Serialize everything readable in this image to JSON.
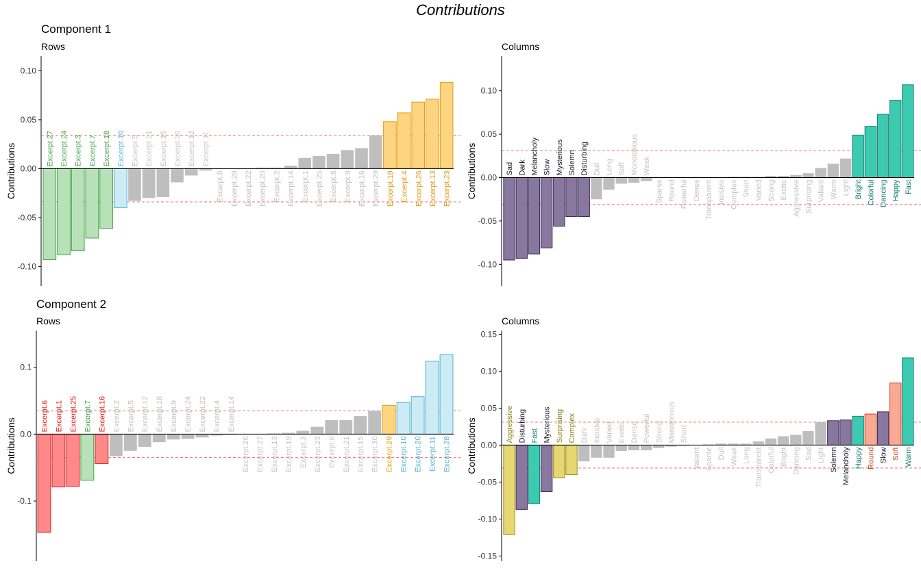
{
  "title": "Contributions",
  "components": [
    {
      "label": "Component 1"
    },
    {
      "label": "Component 2"
    }
  ],
  "chart_data": [
    {
      "type": "bar",
      "component": "Component 1",
      "subtitle": "Rows",
      "ylabel": "Contributions",
      "ylim": [
        -0.12,
        0.115
      ],
      "yticks": [
        -0.1,
        -0.05,
        0.0,
        0.05,
        0.1
      ],
      "tick_labels": [
        "-0.10",
        "-0.05",
        "0.00",
        "0.05",
        "0.10"
      ],
      "threshold": 0.034,
      "categories": [
        "Excerpt.27",
        "Excerpt.24",
        "Excerpt.3",
        "Excerpt.7",
        "Excerpt.18",
        "Excerpt.10",
        "Excerpt.5",
        "Excerpt.21",
        "Excerpt.15",
        "Excerpt.30",
        "Excerpt.12",
        "Excerpt.11",
        "Excerpt.6",
        "Excerpt.28",
        "Excerpt.22",
        "Excerpt.20",
        "Excerpt.2",
        "Excerpt.14",
        "Excerpt.1",
        "Excerpt.25",
        "Excerpt.8",
        "Excerpt.9",
        "Excerpt.16",
        "Excerpt.29",
        "Excerpt.19",
        "Excerpt.4",
        "Excerpt.26",
        "Excerpt.13",
        "Excerpt.23"
      ],
      "values": [
        -0.093,
        -0.088,
        -0.084,
        -0.071,
        -0.061,
        -0.04,
        -0.033,
        -0.03,
        -0.029,
        -0.014,
        -0.007,
        -0.002,
        0.0,
        0.0,
        0.0,
        0.001,
        0.001,
        0.003,
        0.011,
        0.013,
        0.015,
        0.019,
        0.021,
        0.034,
        0.048,
        0.057,
        0.068,
        0.071,
        0.088
      ],
      "groups": [
        "g",
        "g",
        "g",
        "g",
        "g",
        "b",
        "n",
        "n",
        "n",
        "n",
        "n",
        "n",
        "n",
        "n",
        "n",
        "n",
        "n",
        "n",
        "n",
        "n",
        "n",
        "n",
        "n",
        "n",
        "o",
        "o",
        "o",
        "o",
        "o"
      ]
    },
    {
      "type": "bar",
      "component": "Component 1",
      "subtitle": "Columns",
      "ylabel": "Contributions",
      "ylim": [
        -0.125,
        0.14
      ],
      "yticks": [
        -0.1,
        -0.05,
        0.0,
        0.05,
        0.1
      ],
      "tick_labels": [
        "-0.10",
        "-0.05",
        "0.00",
        "0.05",
        "0.10"
      ],
      "threshold": 0.031,
      "categories": [
        "Sad",
        "Dark",
        "Melancholy",
        "Slow",
        "Mysterious",
        "Solemn",
        "Disturbing",
        "Dull",
        "Long",
        "Soft",
        "Monotonous",
        "Weak",
        "Sparse",
        "Round",
        "Powerful",
        "Dense",
        "Transparent",
        "Incisive",
        "Complex",
        "Short",
        "Varied",
        "Strong",
        "Exotic",
        "Aggressive",
        "Surprising",
        "Valiant",
        "Warm",
        "Light",
        "Bright",
        "Colorful",
        "Dancing",
        "Happy",
        "Fast"
      ],
      "values": [
        -0.095,
        -0.093,
        -0.088,
        -0.081,
        -0.056,
        -0.045,
        -0.045,
        -0.025,
        -0.014,
        -0.007,
        -0.006,
        -0.004,
        0.0,
        0.0,
        0.0,
        0.0,
        0.0005,
        0.0005,
        0.001,
        0.001,
        0.001,
        0.002,
        0.002,
        0.003,
        0.005,
        0.011,
        0.016,
        0.022,
        0.049,
        0.059,
        0.073,
        0.089,
        0.107
      ],
      "groups": [
        "p",
        "p",
        "p",
        "p",
        "p",
        "p",
        "p",
        "n",
        "n",
        "n",
        "n",
        "n",
        "n",
        "n",
        "n",
        "n",
        "n",
        "n",
        "n",
        "n",
        "n",
        "n",
        "n",
        "n",
        "n",
        "n",
        "n",
        "n",
        "t",
        "t",
        "t",
        "t",
        "t"
      ]
    },
    {
      "type": "bar",
      "component": "Component 2",
      "subtitle": "Rows",
      "ylabel": "Contributions",
      "ylim": [
        -0.19,
        0.155
      ],
      "yticks": [
        -0.1,
        0.0,
        0.1
      ],
      "tick_labels": [
        "-0.1",
        "0.0",
        "0.1"
      ],
      "threshold": 0.035,
      "categories": [
        "Excerpt.6",
        "Excerpt.1",
        "Excerpt.25",
        "Excerpt.7",
        "Excerpt.16",
        "Excerpt.2",
        "Excerpt.5",
        "Excerpt.12",
        "Excerpt.18",
        "Excerpt.9",
        "Excerpt.24",
        "Excerpt.22",
        "Excerpt.4",
        "Excerpt.14",
        "Excerpt.26",
        "Excerpt.27",
        "Excerpt.13",
        "Excerpt.19",
        "Excerpt.3",
        "Excerpt.23",
        "Excerpt.8",
        "Excerpt.21",
        "Excerpt.15",
        "Excerpt.30",
        "Excerpt.29",
        "Excerpt.10",
        "Excerpt.20",
        "Excerpt.11",
        "Excerpt.28"
      ],
      "values": [
        -0.147,
        -0.079,
        -0.078,
        -0.069,
        -0.044,
        -0.033,
        -0.025,
        -0.019,
        -0.012,
        -0.008,
        -0.007,
        -0.005,
        -0.002,
        -0.001,
        0.0,
        0.0,
        0.001,
        0.002,
        0.005,
        0.011,
        0.021,
        0.021,
        0.027,
        0.035,
        0.043,
        0.047,
        0.056,
        0.109,
        0.119
      ],
      "groups": [
        "r",
        "r",
        "r",
        "g",
        "r",
        "n",
        "n",
        "n",
        "n",
        "n",
        "n",
        "n",
        "n",
        "n",
        "n",
        "n",
        "n",
        "n",
        "n",
        "n",
        "n",
        "n",
        "n",
        "n",
        "o",
        "b",
        "b",
        "b",
        "b"
      ]
    },
    {
      "type": "bar",
      "component": "Component 2",
      "subtitle": "Columns",
      "ylabel": "Contributions",
      "ylim": [
        -0.157,
        0.155
      ],
      "yticks": [
        -0.15,
        -0.1,
        -0.05,
        0.0,
        0.05,
        0.1,
        0.15
      ],
      "tick_labels": [
        "-0.15",
        "-0.10",
        "-0.05",
        "0.00",
        "0.05",
        "0.10",
        "0.15"
      ],
      "threshold": 0.031,
      "categories": [
        "Aggressive",
        "Disturbing",
        "Fast",
        "Mysterious",
        "Surprising",
        "Complex",
        "Dark",
        "Incisive",
        "Varied",
        "Exotic",
        "Dense",
        "Powerful",
        "Strong",
        "Monotonous",
        "Short",
        "Valiant",
        "Sparse",
        "Dull",
        "Weak",
        "Long",
        "Transparent",
        "Colorful",
        "Bright",
        "Dancing",
        "Sad",
        "Light",
        "Solemn",
        "Melancholy",
        "Happy",
        "Round",
        "Slow",
        "Soft",
        "Warm"
      ],
      "values": [
        -0.121,
        -0.087,
        -0.079,
        -0.063,
        -0.044,
        -0.04,
        -0.022,
        -0.017,
        -0.017,
        -0.008,
        -0.007,
        -0.007,
        -0.004,
        -0.002,
        -0.001,
        0.0,
        0.001,
        0.002,
        0.002,
        0.002,
        0.005,
        0.009,
        0.012,
        0.014,
        0.019,
        0.031,
        0.033,
        0.034,
        0.039,
        0.042,
        0.045,
        0.084,
        0.118
      ],
      "groups": [
        "y",
        "p",
        "t",
        "p",
        "y",
        "y",
        "n",
        "n",
        "n",
        "n",
        "n",
        "n",
        "n",
        "n",
        "n",
        "n",
        "n",
        "n",
        "n",
        "n",
        "n",
        "n",
        "n",
        "n",
        "n",
        "n",
        "p",
        "p",
        "t",
        "s",
        "p",
        "s",
        "t"
      ]
    }
  ],
  "colors": {
    "g": {
      "fill": "#b8e1b9",
      "stroke": "#41a046",
      "label": "#41a046"
    },
    "b": {
      "fill": "#cdebf5",
      "stroke": "#4fb1d4",
      "label": "#4fb1d4"
    },
    "o": {
      "fill": "#fdd581",
      "stroke": "#e59a14",
      "label": "#e59a14"
    },
    "r": {
      "fill": "#ff8888",
      "stroke": "#d62424",
      "label": "#e41a1c"
    },
    "p": {
      "fill": "#88789f",
      "stroke": "#3c2a57",
      "label": "#1a1a2a"
    },
    "t": {
      "fill": "#3ccab0",
      "stroke": "#14806e",
      "label": "#14806e"
    },
    "y": {
      "fill": "#e6d770",
      "stroke": "#9a8a1c",
      "label": "#8a7c10"
    },
    "s": {
      "fill": "#f9aa92",
      "stroke": "#d63a1f",
      "label": "#d63a1f"
    },
    "n": {
      "fill": "#bebebe",
      "stroke": "#bebebe",
      "label": "#c2c2c2"
    },
    "axis": "#000000",
    "threshold_line": "#e8706c"
  }
}
